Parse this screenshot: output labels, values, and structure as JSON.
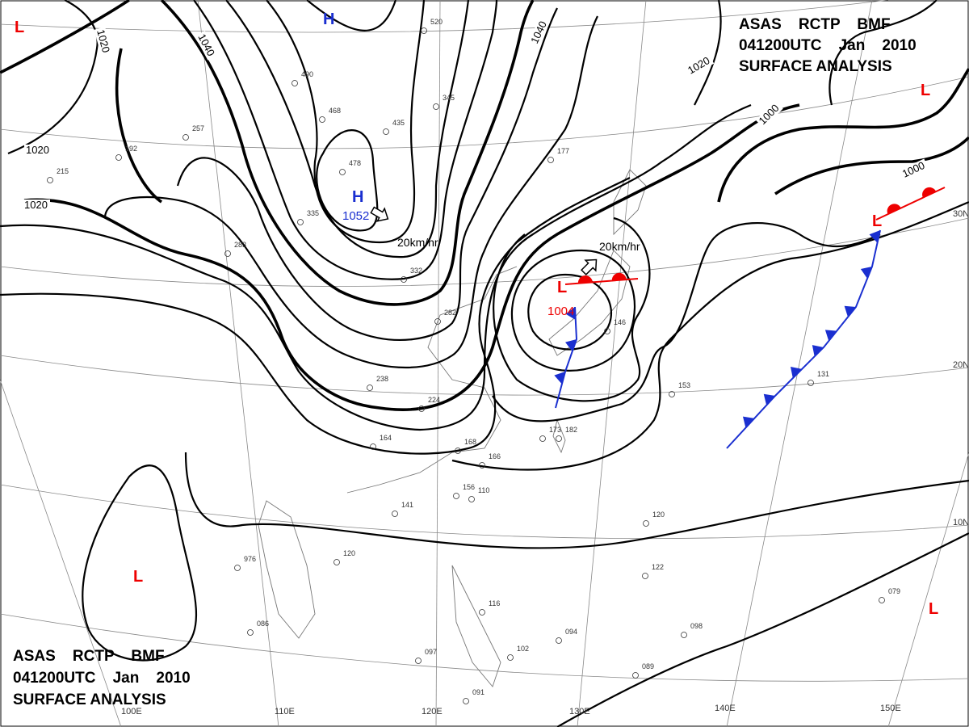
{
  "header": {
    "line1": "ASAS    RCTP    BMF",
    "line2": "041200UTC    Jan    2010",
    "line3": "SURFACE ANALYSIS"
  },
  "isobar_labels": [
    "1020",
    "1040",
    "1020",
    "1020",
    "1040",
    "1020",
    "1000",
    "1000"
  ],
  "centers": [
    {
      "symbol": "H",
      "value": null
    },
    {
      "symbol": "H",
      "value": "1052"
    },
    {
      "symbol": "L",
      "value": "1004"
    },
    {
      "symbol": "L",
      "value": null
    },
    {
      "symbol": "L",
      "value": null
    },
    {
      "symbol": "L",
      "value": null
    },
    {
      "symbol": "L",
      "value": null
    },
    {
      "symbol": "L",
      "value": null
    }
  ],
  "motions": [
    "20km/hr",
    "20km/hr"
  ],
  "latitudes": [
    "30N",
    "20N",
    "10N"
  ],
  "longitudes": [
    "100E",
    "110E",
    "120E",
    "130E",
    "140E",
    "150E"
  ],
  "stations": [
    "238",
    "224",
    "164",
    "168",
    "166",
    "156",
    "110",
    "141",
    "120",
    "976",
    "086",
    "116",
    "102",
    "097",
    "091",
    "094",
    "120",
    "122",
    "153",
    "131",
    "098",
    "089",
    "079",
    "182",
    "173",
    "282",
    "332",
    "345",
    "435",
    "478",
    "335",
    "283",
    "192",
    "215",
    "257",
    "490",
    "468",
    "520",
    "177",
    "146"
  ]
}
